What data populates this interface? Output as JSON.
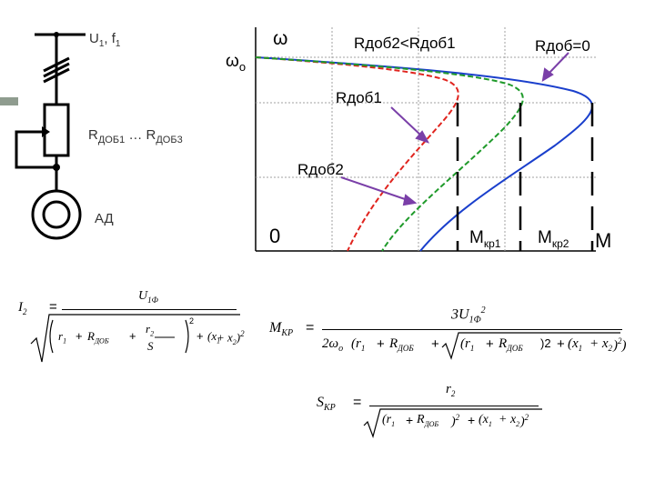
{
  "scheme": {
    "supply_label": "U",
    "supply_sub1": "1",
    "supply_sep": ", f",
    "supply_sub2": "1",
    "resistor_label": "R",
    "resistor_sub1": "ДОБ1",
    "resistor_mid": " … R",
    "resistor_sub2": "ДОБ3",
    "motor_label": "АД"
  },
  "graph": {
    "omega_axis": "ω",
    "omega_zero_main": "ω",
    "omega_zero_sub": "o",
    "origin": "0",
    "m_axis": "M",
    "mkr1_main": "M",
    "mkr1_sub": "кр1",
    "mkr2_main": "M",
    "mkr2_sub": "кр2",
    "label_compare": "Rдоб2<Rдоб1",
    "label_zero": "Rдоб=0",
    "label_r1": "Rдоб1",
    "label_r2": "Rдоб2",
    "colors": {
      "zero": "#1a3fcc",
      "r1": "#e0241e",
      "r2": "#1f9a2a",
      "arrow": "#7a3fa8",
      "grid": "#999999"
    }
  },
  "formulas": {
    "current": {
      "lhs": "I",
      "lhs_sub": "2",
      "eq": "=",
      "num": "U",
      "num_sub": "1Ф",
      "den_r1": "r",
      "den_r1_sub": "1",
      "den_plus1": "+",
      "den_rdob": "R",
      "den_rdob_sub": "ДОБ",
      "den_plus2": "+",
      "den_r2": "r",
      "den_r2_sub": "2",
      "den_s": "S",
      "den_exp1": "2",
      "den_plus3": "+",
      "den_x": "(x",
      "den_x1_sub": "1",
      "den_plus4": "+ x",
      "den_x2_sub": "2",
      "den_close": ")",
      "den_exp2": "2"
    },
    "moment": {
      "lhs": "M",
      "lhs_sub": "КР",
      "eq": "=",
      "num": "3U",
      "num_sub": "1Ф",
      "num_exp": "2",
      "den_2w": "2ω",
      "den_w_sub": "o",
      "den_open": "(r",
      "den_r1_sub": "1",
      "den_plus1": "+",
      "den_rdob": "R",
      "den_rdob_sub": "ДОБ",
      "den_plus2": "+",
      "den_r1b": "(r",
      "den_r1b_sub": "1",
      "den_plus3": "+",
      "den_rdob2": "R",
      "den_rdob2_sub": "ДОБ",
      "den_exp1": ")2",
      "den_plus4": "+",
      "den_x": "(x",
      "den_x1_sub": "1",
      "den_plus5": "+ x",
      "den_x2_sub": "2",
      "den_close": ")",
      "den_exp2": "2",
      "den_end": ")"
    },
    "slip": {
      "lhs": "S",
      "lhs_sub": "КР",
      "eq": "=",
      "num": "r",
      "num_sub": "2",
      "den_open": "(r",
      "den_r1_sub": "1",
      "den_plus1": "+",
      "den_rdob": "R",
      "den_rdob_sub": "ДОБ",
      "den_close1": ")",
      "den_exp1": "2",
      "den_plus2": "+",
      "den_x": "(x",
      "den_x1_sub": "1",
      "den_plus3": "+ x",
      "den_x2_sub": "2",
      "den_close2": ")",
      "den_exp2": "2"
    }
  }
}
